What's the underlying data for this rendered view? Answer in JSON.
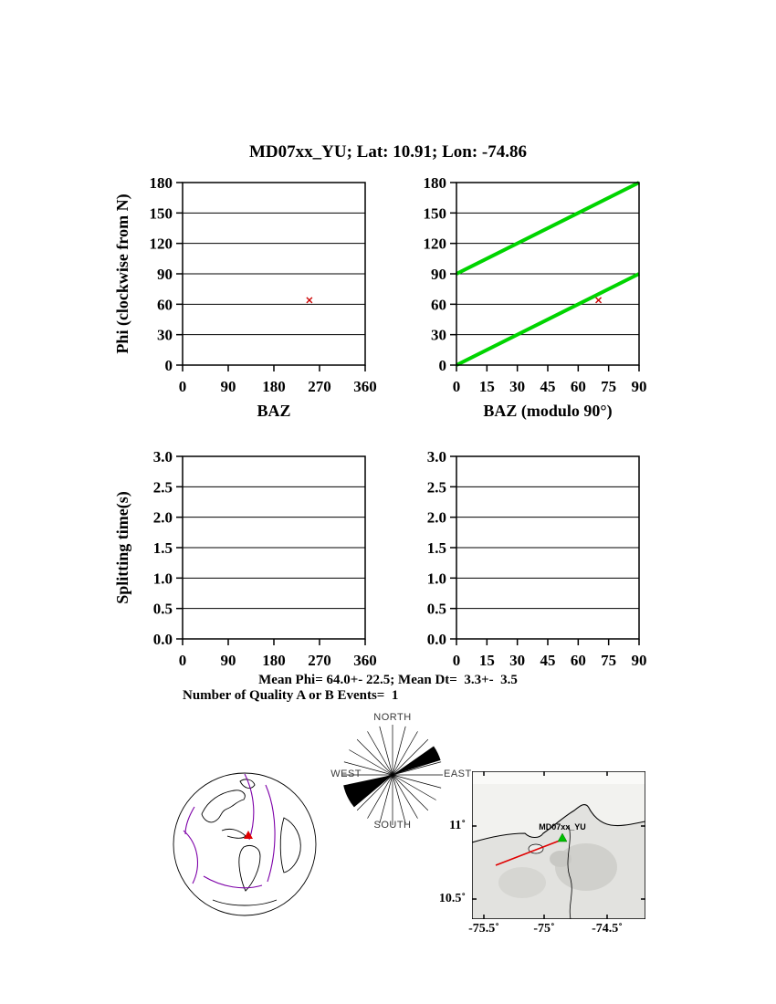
{
  "title": "MD07xx_YU; Lat:  10.91;  Lon:  -74.86",
  "summary": {
    "mean_line": "Mean Phi= 64.0+- 22.5; Mean Dt=  3.3+-  3.5",
    "events_line": "Number of Quality A or B Events=  1"
  },
  "chart_data": [
    {
      "id": "phi_vs_baz",
      "type": "scatter",
      "xlabel": "BAZ",
      "ylabel": "Phi (clockwise from N)",
      "xlim": [
        0,
        360
      ],
      "ylim": [
        0,
        180
      ],
      "xticks": [
        0,
        90,
        180,
        270,
        360
      ],
      "xtick_labels": [
        "0",
        "90",
        "180",
        "270",
        "360"
      ],
      "yticks": [
        0,
        30,
        60,
        90,
        120,
        150,
        180
      ],
      "ytick_labels": [
        "0",
        "30",
        "60",
        "90",
        "120",
        "150",
        "180"
      ],
      "grid": "horizontal",
      "lines": [],
      "points": [
        {
          "x": 250,
          "y": 64
        }
      ],
      "marker": {
        "shape": "x",
        "color": "#cc0000"
      }
    },
    {
      "id": "phi_vs_baz_mod90",
      "type": "scatter",
      "xlabel": "BAZ (modulo 90°)",
      "ylabel": "",
      "xlim": [
        0,
        90
      ],
      "ylim": [
        0,
        180
      ],
      "xticks": [
        0,
        15,
        30,
        45,
        60,
        75,
        90
      ],
      "xtick_labels": [
        "0",
        "15",
        "30",
        "45",
        "60",
        "75",
        "90"
      ],
      "yticks": [
        0,
        30,
        60,
        90,
        120,
        150,
        180
      ],
      "ytick_labels": [
        "0",
        "30",
        "60",
        "90",
        "120",
        "150",
        "180"
      ],
      "grid": "horizontal",
      "lines": [
        {
          "points": [
            [
              0,
              0
            ],
            [
              90,
              90
            ]
          ],
          "color": "#00d400",
          "width": 4
        },
        {
          "points": [
            [
              0,
              90
            ],
            [
              90,
              180
            ]
          ],
          "color": "#00d400",
          "width": 4
        }
      ],
      "points": [
        {
          "x": 70,
          "y": 64
        }
      ],
      "marker": {
        "shape": "x",
        "color": "#cc0000"
      }
    },
    {
      "id": "dt_vs_baz",
      "type": "scatter",
      "xlabel": "",
      "ylabel": "Splitting time(s)",
      "xlim": [
        0,
        360
      ],
      "ylim": [
        0,
        3
      ],
      "xticks": [
        0,
        90,
        180,
        270,
        360
      ],
      "xtick_labels": [
        "0",
        "90",
        "180",
        "270",
        "360"
      ],
      "yticks": [
        0,
        0.5,
        1,
        1.5,
        2,
        2.5,
        3
      ],
      "ytick_labels": [
        "0.0",
        "0.5",
        "1.0",
        "1.5",
        "2.0",
        "2.5",
        "3.0"
      ],
      "grid": "horizontal",
      "lines": [],
      "points": []
    },
    {
      "id": "dt_vs_baz_mod90",
      "type": "scatter",
      "xlabel": "",
      "ylabel": "",
      "xlim": [
        0,
        90
      ],
      "ylim": [
        0,
        3
      ],
      "xticks": [
        0,
        15,
        30,
        45,
        60,
        75,
        90
      ],
      "xtick_labels": [
        "0",
        "15",
        "30",
        "45",
        "60",
        "75",
        "90"
      ],
      "yticks": [
        0,
        0.5,
        1,
        1.5,
        2,
        2.5,
        3
      ],
      "ytick_labels": [
        "0.0",
        "0.5",
        "1.0",
        "1.5",
        "2.0",
        "2.5",
        "3.0"
      ],
      "grid": "horizontal",
      "lines": [],
      "points": []
    }
  ],
  "rose": {
    "labels": {
      "north": "NORTH",
      "east": "EAST",
      "south": "SOUTH",
      "west": "WEST"
    },
    "spoke_step_deg": 15,
    "wedges": [
      {
        "azimuth": 64,
        "halfwidth": 9,
        "length": 1
      },
      {
        "azimuth": 244,
        "halfwidth": 14,
        "length": 1
      }
    ]
  },
  "map": {
    "station_label": "MD07xx_YU",
    "station": {
      "lat": 10.91,
      "lon": -74.86
    },
    "lat_tick_labels": [
      "11˚",
      "10.5˚"
    ],
    "lon_tick_labels": [
      "-75.5˚",
      "-75˚",
      "-74.5˚"
    ],
    "marker_color": "#00c000",
    "event_line_color": "#e00000"
  },
  "colors": {
    "trend_line_green": "#00d400",
    "point_marker_red": "#cc0000"
  }
}
